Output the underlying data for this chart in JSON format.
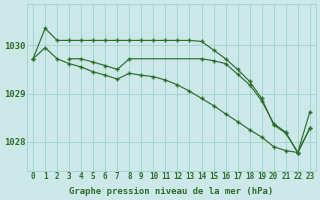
{
  "bg_color": "#cce8e8",
  "grid_color": "#99cccc",
  "line_color": "#2d6e2d",
  "xlim": [
    -0.5,
    23.5
  ],
  "ylim": [
    1027.4,
    1030.85
  ],
  "yticks": [
    1028,
    1029,
    1030
  ],
  "ytick_labels": [
    "1028",
    "1029",
    "1030"
  ],
  "xticks": [
    0,
    1,
    2,
    3,
    4,
    5,
    6,
    7,
    8,
    9,
    10,
    11,
    12,
    13,
    14,
    15,
    16,
    17,
    18,
    19,
    20,
    21,
    22,
    23
  ],
  "xlabel": "Graphe pression niveau de la mer (hPa)",
  "xlabel_fontsize": 6.5,
  "tick_fontsize": 5.5,
  "ytick_fontsize": 6.5,
  "seriesA": {
    "x": [
      0,
      1,
      2,
      3,
      4,
      5,
      6,
      7,
      8,
      9,
      10,
      11,
      12,
      13,
      14,
      15,
      16,
      17,
      18,
      19,
      20,
      21,
      22,
      23
    ],
    "y": [
      1029.72,
      1030.35,
      1030.1,
      1030.1,
      1030.1,
      1030.1,
      1030.1,
      1030.1,
      1030.1,
      1030.1,
      1030.1,
      1030.1,
      1030.1,
      1030.1,
      1030.08,
      1029.9,
      1029.72,
      1029.5,
      1029.25,
      1028.9,
      1028.35,
      1028.18,
      1027.78,
      1028.28
    ]
  },
  "seriesB": {
    "x": [
      3,
      4,
      5,
      6,
      7,
      8,
      14,
      15,
      16,
      17,
      18,
      19,
      20,
      21,
      22,
      23
    ],
    "y": [
      1029.72,
      1029.72,
      1029.65,
      1029.58,
      1029.5,
      1029.72,
      1029.72,
      1029.68,
      1029.62,
      1029.4,
      1029.18,
      1028.85,
      1028.38,
      1028.2,
      1027.78,
      1028.28
    ]
  },
  "seriesC": {
    "x": [
      0,
      1,
      2,
      3,
      4,
      5,
      6,
      7,
      8,
      9,
      10,
      11,
      12,
      13,
      14,
      15,
      16,
      17,
      18,
      19,
      20,
      21,
      22,
      23
    ],
    "y": [
      1029.72,
      1029.95,
      1029.72,
      1029.62,
      1029.55,
      1029.45,
      1029.38,
      1029.3,
      1029.42,
      1029.38,
      1029.35,
      1029.28,
      1029.18,
      1029.05,
      1028.9,
      1028.75,
      1028.58,
      1028.42,
      1028.25,
      1028.1,
      1027.9,
      1027.82,
      1027.78,
      1028.62
    ]
  }
}
